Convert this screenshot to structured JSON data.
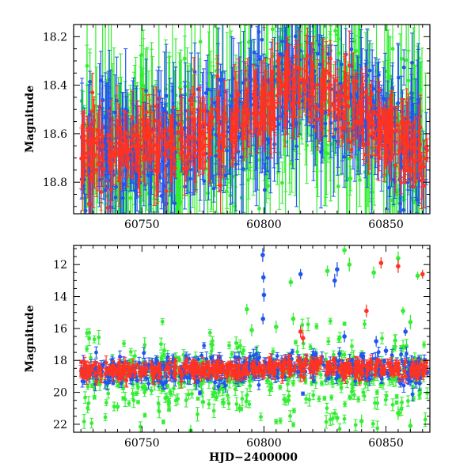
{
  "figure": {
    "xlabel": "HJD−2400000"
  },
  "chart_data": [
    {
      "type": "scatter",
      "title": "",
      "xlabel": "",
      "ylabel": "Magnitude",
      "xlim": [
        60722,
        60868
      ],
      "ylim": [
        18.93,
        18.15
      ],
      "y_inverted": true,
      "xticks": [
        60750,
        60800,
        60850
      ],
      "xtick_labels": [
        "60750",
        "60800",
        "60850"
      ],
      "yticks": [
        18.2,
        18.4,
        18.6,
        18.8
      ],
      "ytick_labels": [
        "18.2",
        "18.4",
        "18.6",
        "18.8"
      ],
      "grid": false,
      "series": [
        {
          "color": "#33ee33",
          "values_desc": "dense error-bar points",
          "trend": [
            [
              60725,
              18.66
            ],
            [
              60740,
              18.67
            ],
            [
              60755,
              18.66
            ],
            [
              60770,
              18.62
            ],
            [
              60785,
              18.57
            ],
            [
              60800,
              18.5
            ],
            [
              60810,
              18.4
            ],
            [
              60815,
              18.37
            ],
            [
              60825,
              18.44
            ],
            [
              60835,
              18.5
            ],
            [
              60845,
              18.55
            ],
            [
              60855,
              18.62
            ],
            [
              60866,
              18.66
            ]
          ],
          "scatter": 0.16
        },
        {
          "color": "#2255ee",
          "trend": [
            [
              60725,
              18.66
            ],
            [
              60740,
              18.67
            ],
            [
              60755,
              18.66
            ],
            [
              60770,
              18.62
            ],
            [
              60785,
              18.57
            ],
            [
              60800,
              18.5
            ],
            [
              60810,
              18.4
            ],
            [
              60815,
              18.37
            ],
            [
              60825,
              18.44
            ],
            [
              60835,
              18.5
            ],
            [
              60845,
              18.55
            ],
            [
              60855,
              18.62
            ],
            [
              60866,
              18.66
            ]
          ],
          "scatter": 0.12
        },
        {
          "color": "#ff3322",
          "trend": [
            [
              60725,
              18.66
            ],
            [
              60740,
              18.67
            ],
            [
              60755,
              18.66
            ],
            [
              60770,
              18.62
            ],
            [
              60785,
              18.57
            ],
            [
              60800,
              18.5
            ],
            [
              60810,
              18.4
            ],
            [
              60815,
              18.37
            ],
            [
              60825,
              18.44
            ],
            [
              60835,
              18.5
            ],
            [
              60845,
              18.55
            ],
            [
              60855,
              18.62
            ],
            [
              60866,
              18.66
            ]
          ],
          "scatter": 0.07
        }
      ]
    },
    {
      "type": "scatter",
      "title": "",
      "xlabel": "HJD−2400000",
      "ylabel": "Magnitude",
      "xlim": [
        60722,
        60868
      ],
      "ylim": [
        22.5,
        10.8
      ],
      "y_inverted": true,
      "xticks": [
        60750,
        60800,
        60850
      ],
      "xtick_labels": [
        "60750",
        "60800",
        "60850"
      ],
      "yticks": [
        12,
        14,
        16,
        18,
        20,
        22
      ],
      "ytick_labels": [
        "12",
        "14",
        "16",
        "18",
        "20",
        "22"
      ],
      "grid": false,
      "outliers": {
        "blue": [
          [
            60799.5,
            11.4
          ],
          [
            60799.8,
            12.8
          ],
          [
            60800.0,
            13.9
          ],
          [
            60799.6,
            15.4
          ],
          [
            60815,
            12.6
          ],
          [
            60829,
            13.0
          ],
          [
            60830,
            12.3
          ],
          [
            60833,
            16.5
          ],
          [
            60846,
            16.8
          ],
          [
            60850,
            17.4
          ],
          [
            60858,
            16.2
          ]
        ],
        "red": [
          [
            60848,
            11.9
          ],
          [
            60855,
            12.1
          ],
          [
            60865,
            12.6
          ],
          [
            60842,
            14.9
          ],
          [
            60815,
            16.2
          ],
          [
            60816,
            16.6
          ]
        ],
        "green": [
          [
            60833,
            11.1
          ],
          [
            60835,
            12.0
          ],
          [
            60845,
            12.5
          ],
          [
            60855,
            11.6
          ],
          [
            60863,
            12.7
          ],
          [
            60826,
            12.4
          ],
          [
            60811,
            13.1
          ],
          [
            60805,
            15.9
          ],
          [
            60795,
            16.1
          ],
          [
            60793,
            14.8
          ],
          [
            60812,
            15.4
          ],
          [
            60857,
            14.9
          ],
          [
            60860,
            15.6
          ],
          [
            60740,
            20.9
          ],
          [
            60770,
            22.4
          ],
          [
            60790,
            21.0
          ],
          [
            60810,
            20.5
          ],
          [
            60830,
            21.6
          ],
          [
            60840,
            21.8
          ],
          [
            60860,
            22.1
          ],
          [
            60855,
            21.3
          ],
          [
            60775,
            20.6
          ]
        ]
      },
      "series": [
        {
          "color": "#33ee33",
          "scatter": 1.1
        },
        {
          "color": "#2255ee",
          "scatter": 0.45
        },
        {
          "color": "#ff3322",
          "scatter": 0.25
        }
      ]
    }
  ]
}
